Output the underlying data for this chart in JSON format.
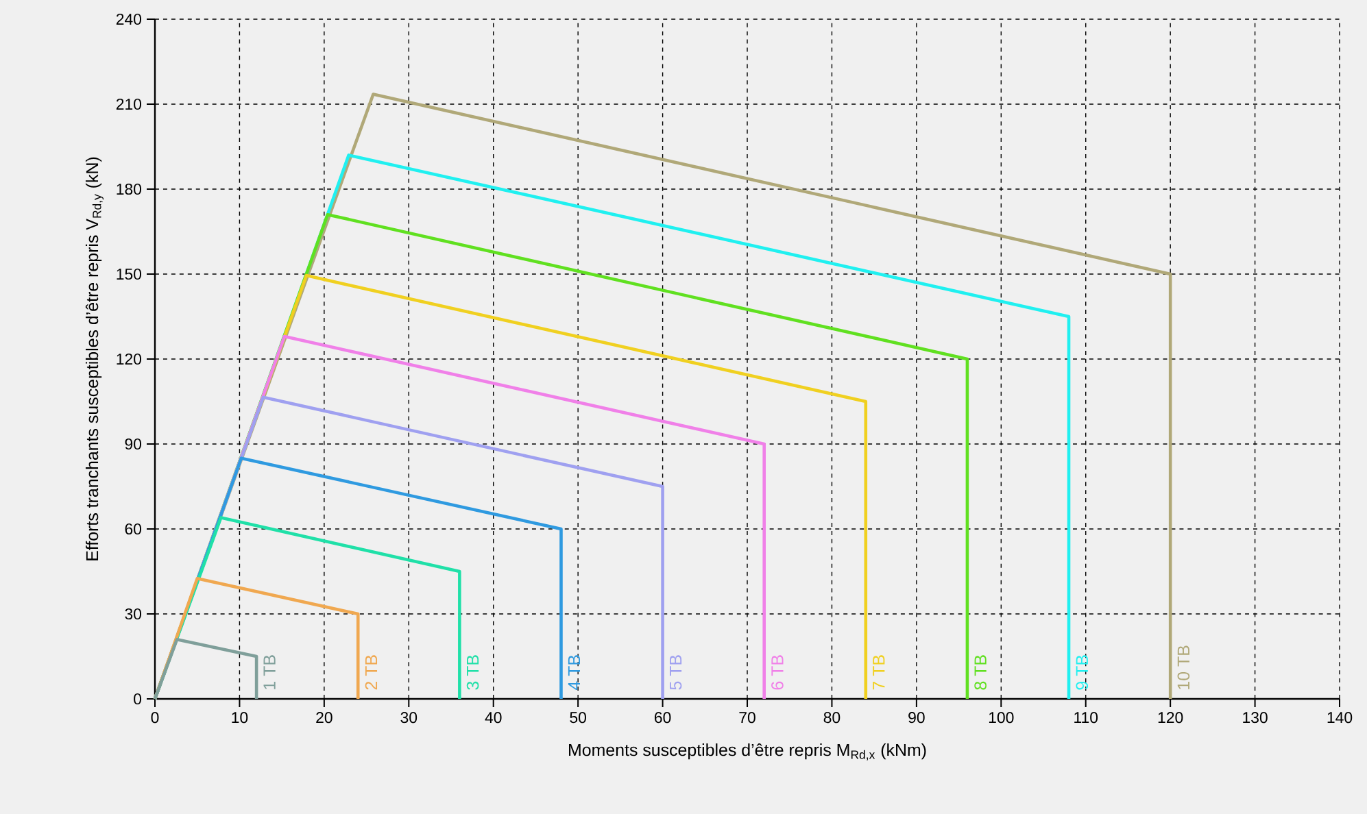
{
  "chart_data": {
    "type": "line",
    "xlabel": "Moments susceptibles d’être repris M$_{Rd,x}$ (kNm)",
    "ylabel": "Efforts tranchants susceptibles d’être repris V$_{Rd,y}$ (kN)",
    "xlim": [
      0,
      140
    ],
    "xticks": [
      0,
      10,
      20,
      30,
      40,
      50,
      60,
      70,
      80,
      90,
      100,
      110,
      120,
      130,
      140
    ],
    "ylim": [
      0,
      240
    ],
    "yticks": [
      0,
      30,
      60,
      90,
      120,
      150,
      180,
      210,
      240
    ],
    "grid": true,
    "line_style": "solid",
    "marker": "none",
    "series": [
      {
        "name": "1 TB",
        "color": "#7f9f9a",
        "x": [
          0,
          2.6,
          12,
          12
        ],
        "values": [
          0,
          21,
          15,
          0
        ]
      },
      {
        "name": "2 TB",
        "color": "#f0a850",
        "x": [
          0,
          5,
          24,
          24
        ],
        "values": [
          0,
          42.5,
          30,
          0
        ]
      },
      {
        "name": "3 TB",
        "color": "#20e0a8",
        "x": [
          0,
          7.8,
          36,
          36
        ],
        "values": [
          0,
          64,
          45,
          0
        ]
      },
      {
        "name": "4 TB",
        "color": "#2f9ae0",
        "x": [
          0,
          10.2,
          48,
          48
        ],
        "values": [
          0,
          85,
          60,
          0
        ]
      },
      {
        "name": "5 TB",
        "color": "#9fa0f0",
        "x": [
          0,
          12.8,
          60,
          60
        ],
        "values": [
          0,
          106.5,
          75,
          0
        ]
      },
      {
        "name": "6 TB",
        "color": "#f080e8",
        "x": [
          0,
          15.3,
          72,
          72
        ],
        "values": [
          0,
          128,
          90,
          0
        ]
      },
      {
        "name": "7 TB",
        "color": "#f0d020",
        "x": [
          0,
          17.9,
          84,
          84
        ],
        "values": [
          0,
          149.5,
          105,
          0
        ]
      },
      {
        "name": "8 TB",
        "color": "#60e020",
        "x": [
          0,
          20.4,
          96,
          96
        ],
        "values": [
          0,
          171,
          120,
          0
        ]
      },
      {
        "name": "9 TB",
        "color": "#20f0f0",
        "x": [
          0,
          22.9,
          108,
          108
        ],
        "values": [
          0,
          192,
          135,
          0
        ]
      },
      {
        "name": "10 TB",
        "color": "#b0a878",
        "x": [
          0,
          25.8,
          120,
          120
        ],
        "values": [
          0,
          213.5,
          150,
          0
        ]
      }
    ]
  }
}
